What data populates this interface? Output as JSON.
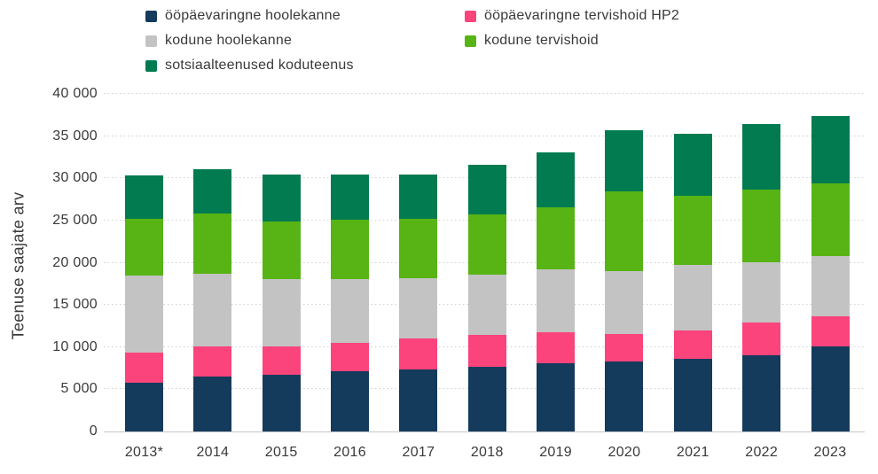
{
  "chart_data": {
    "type": "bar",
    "stacked": true,
    "title": "",
    "xlabel": "",
    "ylabel": "Teenuse saajate arv",
    "ylim": [
      0,
      40000
    ],
    "ytick_step": 5000,
    "ytick_labels": [
      "0",
      "5 000",
      "10 000",
      "15 000",
      "20 000",
      "25 000",
      "30 000",
      "35 000",
      "40 000"
    ],
    "grid": "horizontal-dotted",
    "legend_position": "top",
    "categories": [
      "2013*",
      "2014",
      "2015",
      "2016",
      "2017",
      "2018",
      "2019",
      "2020",
      "2021",
      "2022",
      "2023"
    ],
    "series": [
      {
        "name": "ööpäevaringne hoolekanne",
        "color": "#143a5c",
        "values": [
          5800,
          6500,
          6700,
          7100,
          7300,
          7700,
          8100,
          8300,
          8600,
          9000,
          10100
        ]
      },
      {
        "name": "ööpäevaringne tervishoid HP2",
        "color": "#fa447b",
        "values": [
          3500,
          3600,
          3400,
          3400,
          3700,
          3700,
          3700,
          3300,
          3400,
          3900,
          3500
        ]
      },
      {
        "name": "kodune hoolekanne",
        "color": "#c3c3c3",
        "values": [
          9200,
          8600,
          8000,
          7600,
          7200,
          7200,
          7400,
          7400,
          7700,
          7200,
          7200
        ]
      },
      {
        "name": "kodune tervishoid",
        "color": "#57b414",
        "values": [
          6700,
          7100,
          6800,
          7000,
          7000,
          7100,
          7400,
          9500,
          8200,
          8600,
          8600
        ]
      },
      {
        "name": "sotsiaalteenused koduteenus",
        "color": "#027b50",
        "values": [
          5100,
          5300,
          5500,
          5300,
          5300,
          5900,
          6500,
          7200,
          7400,
          7700,
          8000
        ]
      }
    ],
    "legend_order": [
      0,
      1,
      2,
      3,
      4
    ]
  }
}
